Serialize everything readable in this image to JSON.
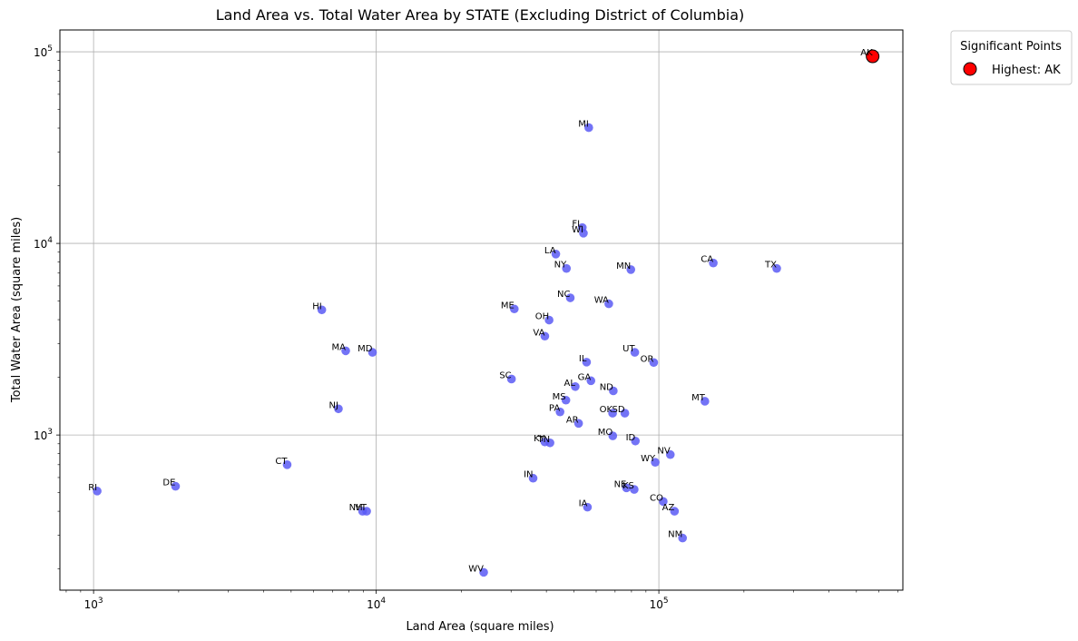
{
  "chart_data": {
    "type": "scatter",
    "title": "Land Area vs. Total Water Area by STATE (Excluding District of Columbia)",
    "xlabel": "Land Area (square miles)",
    "ylabel": "Total Water Area (square miles)",
    "xscale": "log",
    "yscale": "log",
    "xlim": [
      760,
      730000
    ],
    "ylim": [
      155,
      130000
    ],
    "x_ticks": [
      {
        "value": 1000,
        "base": "10",
        "exp": "3"
      },
      {
        "value": 10000,
        "base": "10",
        "exp": "4"
      },
      {
        "value": 100000,
        "base": "10",
        "exp": "5"
      }
    ],
    "y_ticks": [
      {
        "value": 1000,
        "base": "10",
        "exp": "3"
      },
      {
        "value": 10000,
        "base": "10",
        "exp": "4"
      },
      {
        "value": 100000,
        "base": "10",
        "exp": "5"
      }
    ],
    "grid": true,
    "point_color": "#5b5bf5",
    "highlight_color": "#ff0000",
    "points": [
      {
        "label": "RI",
        "x": 1030,
        "y": 510
      },
      {
        "label": "DE",
        "x": 1950,
        "y": 540
      },
      {
        "label": "CT",
        "x": 4840,
        "y": 700
      },
      {
        "label": "HI",
        "x": 6420,
        "y": 4500
      },
      {
        "label": "NJ",
        "x": 7350,
        "y": 1370
      },
      {
        "label": "MA",
        "x": 7800,
        "y": 2750
      },
      {
        "label": "NH",
        "x": 8950,
        "y": 400
      },
      {
        "label": "VT",
        "x": 9250,
        "y": 400
      },
      {
        "label": "MD",
        "x": 9700,
        "y": 2700
      },
      {
        "label": "WV",
        "x": 24000,
        "y": 192
      },
      {
        "label": "SC",
        "x": 30100,
        "y": 1960
      },
      {
        "label": "ME",
        "x": 30800,
        "y": 4550
      },
      {
        "label": "IN",
        "x": 35900,
        "y": 595
      },
      {
        "label": "KY",
        "x": 39500,
        "y": 920
      },
      {
        "label": "VA",
        "x": 39500,
        "y": 3280
      },
      {
        "label": "TN",
        "x": 41200,
        "y": 910
      },
      {
        "label": "OH",
        "x": 40900,
        "y": 3980
      },
      {
        "label": "PA",
        "x": 44700,
        "y": 1320
      },
      {
        "label": "LA",
        "x": 43200,
        "y": 8800
      },
      {
        "label": "MS",
        "x": 46900,
        "y": 1520
      },
      {
        "label": "NY",
        "x": 47100,
        "y": 7400
      },
      {
        "label": "NC",
        "x": 48600,
        "y": 5200
      },
      {
        "label": "AL",
        "x": 50600,
        "y": 1790
      },
      {
        "label": "AR",
        "x": 52000,
        "y": 1150
      },
      {
        "label": "FL",
        "x": 53600,
        "y": 12100
      },
      {
        "label": "WI",
        "x": 54100,
        "y": 11300
      },
      {
        "label": "IA",
        "x": 55900,
        "y": 420
      },
      {
        "label": "IL",
        "x": 55500,
        "y": 2400
      },
      {
        "label": "MI",
        "x": 56500,
        "y": 40200
      },
      {
        "label": "GA",
        "x": 57500,
        "y": 1920
      },
      {
        "label": "WA",
        "x": 66500,
        "y": 4840
      },
      {
        "label": "MO",
        "x": 68700,
        "y": 990
      },
      {
        "label": "OK",
        "x": 68600,
        "y": 1300
      },
      {
        "label": "ND",
        "x": 69000,
        "y": 1700
      },
      {
        "label": "SD",
        "x": 75800,
        "y": 1300
      },
      {
        "label": "NE",
        "x": 76800,
        "y": 530
      },
      {
        "label": "KS",
        "x": 81800,
        "y": 520
      },
      {
        "label": "MN",
        "x": 79600,
        "y": 7300
      },
      {
        "label": "ID",
        "x": 82600,
        "y": 930
      },
      {
        "label": "UT",
        "x": 82200,
        "y": 2700
      },
      {
        "label": "WY",
        "x": 97100,
        "y": 720
      },
      {
        "label": "OR",
        "x": 95900,
        "y": 2390
      },
      {
        "label": "CO",
        "x": 103600,
        "y": 450
      },
      {
        "label": "NV",
        "x": 109800,
        "y": 790
      },
      {
        "label": "AZ",
        "x": 113600,
        "y": 400
      },
      {
        "label": "NM",
        "x": 121300,
        "y": 290
      },
      {
        "label": "MT",
        "x": 145500,
        "y": 1500
      },
      {
        "label": "CA",
        "x": 155800,
        "y": 7900
      },
      {
        "label": "TX",
        "x": 261200,
        "y": 7400
      }
    ],
    "highlight": {
      "label": "AK",
      "x": 570600,
      "y": 94700
    },
    "legend": {
      "title": "Significant Points",
      "entries": [
        "Highest: AK"
      ],
      "position": "outside-upper-right"
    }
  }
}
